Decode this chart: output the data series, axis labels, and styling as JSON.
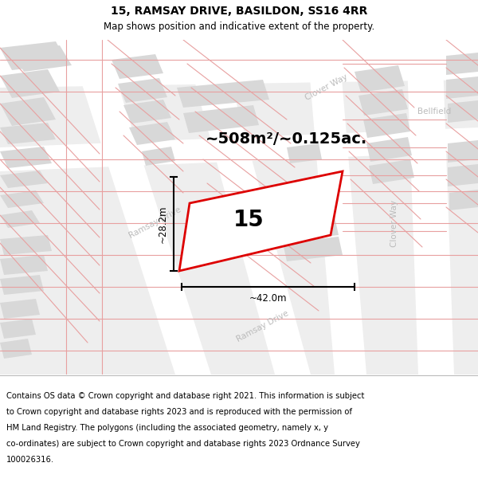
{
  "title_line1": "15, RAMSAY DRIVE, BASILDON, SS16 4RR",
  "title_line2": "Map shows position and indicative extent of the property.",
  "area_text": "~508m²/~0.125ac.",
  "property_number": "15",
  "dim_width": "~42.0m",
  "dim_height": "~28.2m",
  "footer_text": "Contains OS data © Crown copyright and database right 2021. This information is subject to Crown copyright and database rights 2023 and is reproduced with the permission of HM Land Registry. The polygons (including the associated geometry, namely x, y co-ordinates) are subject to Crown copyright and database rights 2023 Ordnance Survey 100026316.",
  "bg_color": "#f4f4f4",
  "road_color": "#ffffff",
  "building_color": "#d8d8d8",
  "pink_line_color": "#e8a0a0",
  "red_outline_color": "#dd0000",
  "title_fontsize": 10,
  "subtitle_fontsize": 8.5,
  "footer_fontsize": 7.2,
  "map_bg": "#eeeeee"
}
